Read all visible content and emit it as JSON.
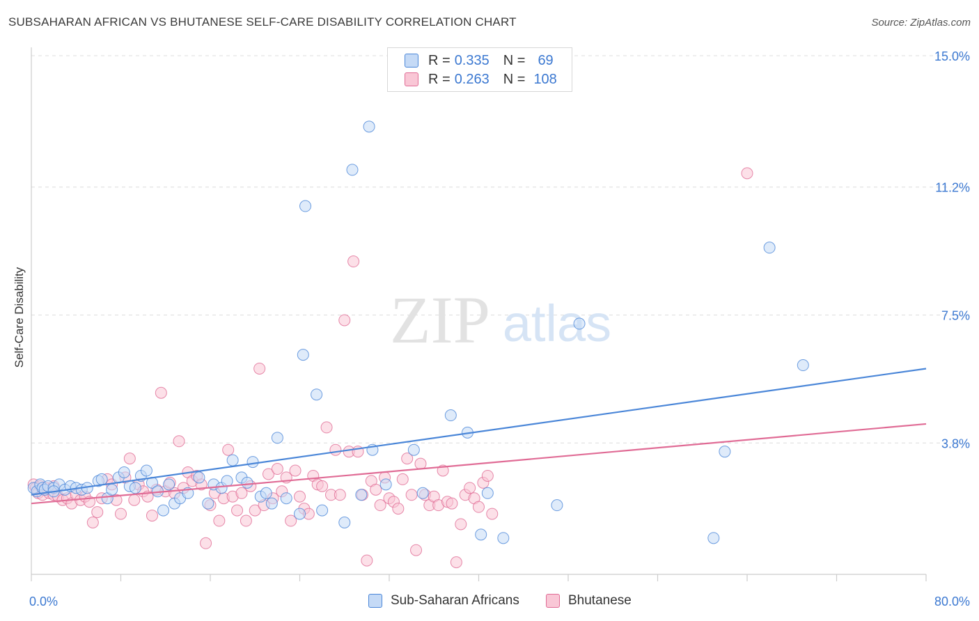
{
  "title": "SUBSAHARAN AFRICAN VS BHUTANESE SELF-CARE DISABILITY CORRELATION CHART",
  "source": "Source: ZipAtlas.com",
  "watermark": {
    "zip": "ZIP",
    "atlas": "atlas"
  },
  "legend": {
    "rows": [
      {
        "r_label": "R =",
        "r_value": "0.335",
        "n_label": "N =",
        "n_value": "69",
        "color": "#4a86d8",
        "fill": "#c5daf6"
      },
      {
        "r_label": "R =",
        "r_value": "0.263",
        "n_label": "N =",
        "n_value": "108",
        "color": "#e06b95",
        "fill": "#f9c7d6"
      }
    ]
  },
  "bottom_legend": [
    {
      "label": "Sub-Saharan Africans",
      "color": "#4a86d8",
      "fill": "#c5daf6"
    },
    {
      "label": "Bhutanese",
      "color": "#e06b95",
      "fill": "#f9c7d6"
    }
  ],
  "chart_data": {
    "type": "scatter",
    "title": "SUBSAHARAN AFRICAN VS BHUTANESE SELF-CARE DISABILITY CORRELATION CHART",
    "xlabel": "",
    "ylabel": "Self-Care Disability",
    "xlim": [
      0,
      80
    ],
    "ylim": [
      0,
      15
    ],
    "x_tick_labels": [
      "0.0%",
      "80.0%"
    ],
    "y_ticks": [
      3.8,
      7.5,
      11.2,
      15.0
    ],
    "y_tick_labels": [
      "3.8%",
      "7.5%",
      "11.2%",
      "15.0%"
    ],
    "grid": true,
    "legend_position": "top-center",
    "series": [
      {
        "name": "Sub-Saharan Africans",
        "color": "#4a86d8",
        "fill": "#c5daf6",
        "trend": {
          "x": [
            0,
            80
          ],
          "y": [
            2.3,
            5.95
          ]
        },
        "points": [
          [
            0.2,
            2.5
          ],
          [
            0.5,
            2.4
          ],
          [
            0.8,
            2.6
          ],
          [
            1.0,
            2.5
          ],
          [
            1.2,
            2.45
          ],
          [
            1.5,
            2.55
          ],
          [
            2.0,
            2.5
          ],
          [
            2.5,
            2.6
          ],
          [
            3.0,
            2.45
          ],
          [
            3.5,
            2.55
          ],
          [
            4.0,
            2.5
          ],
          [
            4.5,
            2.45
          ],
          [
            5.0,
            2.5
          ],
          [
            6.0,
            2.7
          ],
          [
            6.3,
            2.75
          ],
          [
            6.8,
            2.2
          ],
          [
            7.2,
            2.45
          ],
          [
            7.8,
            2.8
          ],
          [
            8.3,
            2.95
          ],
          [
            8.8,
            2.55
          ],
          [
            9.3,
            2.5
          ],
          [
            9.8,
            2.85
          ],
          [
            10.3,
            3.0
          ],
          [
            10.8,
            2.65
          ],
          [
            11.3,
            2.4
          ],
          [
            11.8,
            1.85
          ],
          [
            12.3,
            2.6
          ],
          [
            12.8,
            2.05
          ],
          [
            13.3,
            2.2
          ],
          [
            14.0,
            2.35
          ],
          [
            15.0,
            2.8
          ],
          [
            15.8,
            2.05
          ],
          [
            16.3,
            2.6
          ],
          [
            17.0,
            2.5
          ],
          [
            17.5,
            2.7
          ],
          [
            18.0,
            3.3
          ],
          [
            18.8,
            2.8
          ],
          [
            19.3,
            2.65
          ],
          [
            19.8,
            3.25
          ],
          [
            20.5,
            2.25
          ],
          [
            21.0,
            2.35
          ],
          [
            21.5,
            2.05
          ],
          [
            22.0,
            3.95
          ],
          [
            22.8,
            2.2
          ],
          [
            24.5,
            10.65
          ],
          [
            24.0,
            1.75
          ],
          [
            24.3,
            6.35
          ],
          [
            25.5,
            5.2
          ],
          [
            26.0,
            1.85
          ],
          [
            28.0,
            1.5
          ],
          [
            28.7,
            11.7
          ],
          [
            29.5,
            2.3
          ],
          [
            30.2,
            12.95
          ],
          [
            30.5,
            3.6
          ],
          [
            31.7,
            2.6
          ],
          [
            34.2,
            3.6
          ],
          [
            35.0,
            2.35
          ],
          [
            37.5,
            4.6
          ],
          [
            39.0,
            4.1
          ],
          [
            40.2,
            1.15
          ],
          [
            40.8,
            2.35
          ],
          [
            42.2,
            1.05
          ],
          [
            47.0,
            2.0
          ],
          [
            49.0,
            7.25
          ],
          [
            61.0,
            1.05
          ],
          [
            62.0,
            3.55
          ],
          [
            66.0,
            9.45
          ],
          [
            69.0,
            6.05
          ],
          [
            2.0,
            2.4
          ]
        ]
      },
      {
        "name": "Bhutanese",
        "color": "#e06b95",
        "fill": "#f9c7d6",
        "trend": {
          "x": [
            0,
            80
          ],
          "y": [
            2.05,
            4.35
          ]
        },
        "points": [
          [
            0.2,
            2.6
          ],
          [
            0.4,
            2.5
          ],
          [
            0.6,
            2.35
          ],
          [
            0.8,
            2.55
          ],
          [
            1.0,
            2.3
          ],
          [
            1.3,
            2.5
          ],
          [
            1.6,
            2.35
          ],
          [
            2.0,
            2.3
          ],
          [
            2.4,
            2.25
          ],
          [
            2.8,
            2.15
          ],
          [
            3.2,
            2.2
          ],
          [
            3.6,
            2.05
          ],
          [
            4.0,
            2.3
          ],
          [
            4.4,
            2.15
          ],
          [
            4.8,
            2.25
          ],
          [
            5.2,
            2.1
          ],
          [
            5.5,
            1.5
          ],
          [
            5.9,
            1.8
          ],
          [
            6.3,
            2.2
          ],
          [
            6.8,
            2.75
          ],
          [
            7.2,
            2.6
          ],
          [
            7.6,
            2.15
          ],
          [
            8.0,
            1.75
          ],
          [
            8.4,
            2.8
          ],
          [
            8.8,
            3.35
          ],
          [
            9.2,
            2.15
          ],
          [
            9.6,
            2.6
          ],
          [
            10.0,
            2.4
          ],
          [
            10.4,
            2.25
          ],
          [
            10.8,
            1.7
          ],
          [
            11.2,
            2.45
          ],
          [
            11.6,
            5.25
          ],
          [
            12.0,
            2.4
          ],
          [
            12.4,
            2.65
          ],
          [
            12.8,
            2.35
          ],
          [
            13.2,
            3.85
          ],
          [
            13.6,
            2.5
          ],
          [
            14.0,
            2.95
          ],
          [
            14.4,
            2.7
          ],
          [
            14.8,
            2.85
          ],
          [
            15.2,
            2.6
          ],
          [
            15.6,
            0.9
          ],
          [
            16.0,
            2.0
          ],
          [
            16.4,
            2.35
          ],
          [
            16.8,
            1.55
          ],
          [
            17.2,
            2.2
          ],
          [
            17.6,
            3.6
          ],
          [
            18.0,
            2.25
          ],
          [
            18.4,
            1.85
          ],
          [
            18.8,
            2.35
          ],
          [
            19.2,
            1.55
          ],
          [
            19.6,
            2.55
          ],
          [
            20.0,
            1.85
          ],
          [
            20.4,
            5.95
          ],
          [
            20.8,
            2.0
          ],
          [
            21.2,
            2.9
          ],
          [
            21.6,
            2.2
          ],
          [
            22.0,
            3.05
          ],
          [
            22.4,
            2.4
          ],
          [
            22.8,
            2.8
          ],
          [
            23.2,
            1.55
          ],
          [
            23.6,
            3.0
          ],
          [
            24.0,
            2.25
          ],
          [
            24.4,
            1.9
          ],
          [
            24.8,
            1.75
          ],
          [
            25.2,
            2.85
          ],
          [
            25.6,
            2.6
          ],
          [
            26.0,
            2.55
          ],
          [
            26.4,
            4.25
          ],
          [
            26.8,
            2.3
          ],
          [
            27.2,
            3.6
          ],
          [
            27.6,
            2.3
          ],
          [
            28.0,
            7.35
          ],
          [
            28.4,
            3.55
          ],
          [
            28.8,
            9.05
          ],
          [
            29.2,
            3.55
          ],
          [
            29.6,
            2.3
          ],
          [
            30.0,
            0.4
          ],
          [
            30.4,
            2.7
          ],
          [
            30.8,
            2.45
          ],
          [
            31.2,
            2.0
          ],
          [
            31.6,
            2.8
          ],
          [
            32.0,
            2.2
          ],
          [
            32.4,
            2.1
          ],
          [
            32.8,
            1.9
          ],
          [
            33.2,
            2.75
          ],
          [
            33.6,
            3.35
          ],
          [
            34.0,
            2.3
          ],
          [
            34.4,
            0.7
          ],
          [
            34.8,
            3.2
          ],
          [
            35.2,
            2.3
          ],
          [
            35.6,
            2.0
          ],
          [
            36.0,
            2.25
          ],
          [
            36.4,
            2.0
          ],
          [
            36.8,
            3.0
          ],
          [
            37.2,
            2.1
          ],
          [
            37.6,
            2.05
          ],
          [
            38.0,
            0.35
          ],
          [
            38.4,
            1.45
          ],
          [
            38.8,
            2.3
          ],
          [
            39.2,
            2.5
          ],
          [
            39.6,
            2.2
          ],
          [
            40.0,
            1.95
          ],
          [
            40.4,
            2.65
          ],
          [
            40.8,
            2.85
          ],
          [
            41.2,
            1.75
          ],
          [
            64.0,
            11.6
          ],
          [
            2.0,
            2.55
          ]
        ]
      }
    ]
  }
}
